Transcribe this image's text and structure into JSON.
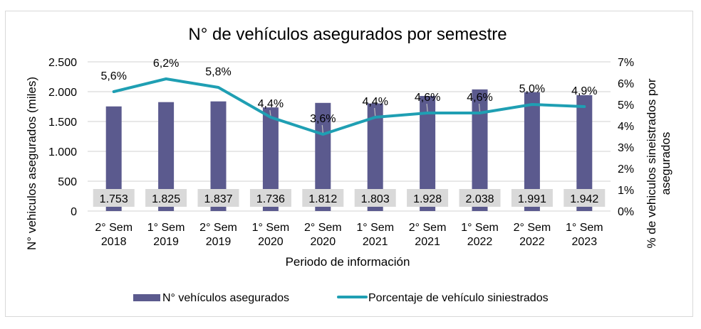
{
  "chart_data": {
    "type": "bar+line",
    "title": "N° de vehículos asegurados por semestre",
    "xlabel": "Periodo de información",
    "ylabel": "N° vehiculos asegurados (miles)",
    "y2label_lines": [
      "% de vehiculos sineistrados por",
      "asegurados"
    ],
    "categories": [
      [
        "2° Sem",
        "2018"
      ],
      [
        "1° Sem",
        "2019"
      ],
      [
        "2° Sem",
        "2019"
      ],
      [
        "1° Sem",
        "2020"
      ],
      [
        "2° Sem",
        "2020"
      ],
      [
        "1° Sem",
        "2021"
      ],
      [
        "2° Sem",
        "2021"
      ],
      [
        "1° Sem",
        "2022"
      ],
      [
        "2° Sem",
        "2022"
      ],
      [
        "1° Sem",
        "2023"
      ]
    ],
    "ylim": [
      0,
      2500
    ],
    "yticks": [
      0,
      500,
      1000,
      1500,
      2000,
      2500
    ],
    "ytick_labels": [
      "0",
      "500",
      "1.000",
      "1.500",
      "2.000",
      "2.500"
    ],
    "y2lim": [
      0,
      7
    ],
    "y2ticks": [
      0,
      1,
      2,
      3,
      4,
      5,
      6,
      7
    ],
    "y2tick_labels": [
      "0%",
      "1%",
      "2%",
      "3%",
      "4%",
      "5%",
      "6%",
      "7%"
    ],
    "grid": true,
    "legend_position": "bottom",
    "series": [
      {
        "name": "N° vehículos asegurados",
        "type": "bar",
        "axis": "left",
        "color": "#5b5a8e",
        "values": [
          1753,
          1825,
          1837,
          1736,
          1812,
          1803,
          1928,
          2038,
          1991,
          1942
        ],
        "labels": [
          "1.753",
          "1.825",
          "1.837",
          "1.736",
          "1.812",
          "1.803",
          "1.928",
          "2.038",
          "1.991",
          "1.942"
        ]
      },
      {
        "name": "Porcentaje de vehículo siniestrados",
        "type": "line",
        "axis": "right",
        "color": "#1f9fb3",
        "values": [
          5.6,
          6.2,
          5.8,
          4.4,
          3.6,
          4.4,
          4.6,
          4.6,
          5.0,
          4.9
        ],
        "labels": [
          "5,6%",
          "6,2%",
          "5,8%",
          "4,4%",
          "3,6%",
          "4,4%",
          "4,6%",
          "4,6%",
          "5,0%",
          "4,9%"
        ]
      }
    ]
  }
}
